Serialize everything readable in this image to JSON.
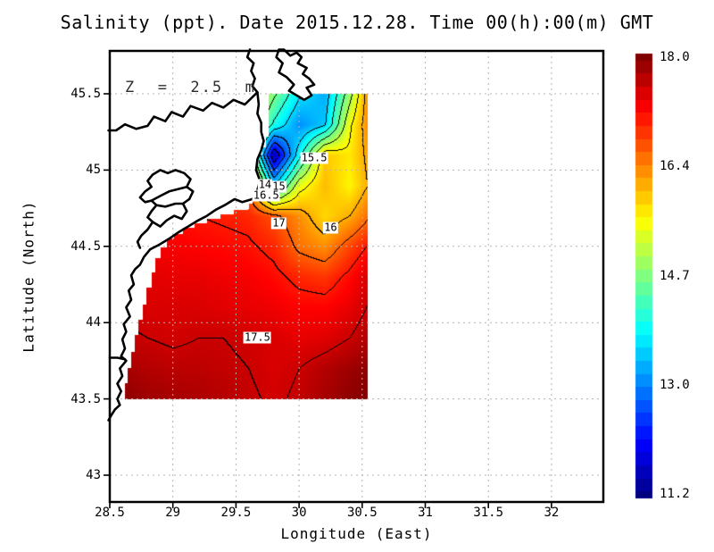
{
  "title": "Salinity (ppt). Date 2015.12.28. Time 00(h):00(m) GMT",
  "annotation": {
    "depth_label": "Z  =  2.5  m"
  },
  "axes": {
    "x": {
      "label": "Longitude (East)",
      "tick_labels": [
        "28.5",
        "29",
        "29.5",
        "30",
        "30.5",
        "31",
        "31.5",
        "32"
      ],
      "tick_values": [
        28.5,
        29,
        29.5,
        30,
        30.5,
        31,
        31.5,
        32
      ],
      "range": [
        28.5,
        32.41
      ]
    },
    "y": {
      "label": "Latitude (North)",
      "tick_labels": [
        "45.5",
        "45",
        "44.5",
        "44",
        "43.5",
        "43"
      ],
      "tick_values": [
        45.5,
        45,
        44.5,
        44,
        43.5,
        43
      ],
      "range": [
        42.82,
        45.78
      ]
    }
  },
  "colorbar": {
    "tick_labels": [
      "18.0",
      "16.4",
      "14.7",
      "13.0",
      "11.2"
    ],
    "min": 11.2,
    "max": 18.0,
    "colormap": "jet"
  },
  "colors": {
    "contour": "#000000",
    "coast": "#000000",
    "grid": "#b4b4b4",
    "frame": "#000000",
    "land": "#ffffff",
    "label_bg": "#ffffff",
    "annotation": "#2e2e2e"
  },
  "chart_data": {
    "type": "heatmap",
    "variable": "Salinity",
    "units": "ppt",
    "depth": "2.5 m",
    "date": "2015.12.28",
    "time": "00(h):00(m) GMT",
    "title": "Salinity (ppt). Date 2015.12.28. Time 00(h):00(m) GMT",
    "xlabel": "Longitude (East)",
    "ylabel": "Latitude (North)",
    "grid": true,
    "legend_position": "right-colorbar",
    "value_range": [
      11.2,
      18.0
    ],
    "contour_interval": 0.5,
    "lon": [
      28.6,
      28.8,
      29.0,
      29.2,
      29.4,
      29.6,
      29.8,
      30.0,
      30.2,
      30.4,
      30.6
    ],
    "lat": [
      45.5,
      45.3,
      45.1,
      44.9,
      44.7,
      44.5,
      44.3,
      44.1,
      43.9,
      43.7,
      43.5
    ],
    "values": [
      [
        17.0,
        17.0,
        17.0,
        16.9,
        16.6,
        15.6,
        14.6,
        13.6,
        13.2,
        14.8,
        16.8
      ],
      [
        17.0,
        17.0,
        17.0,
        16.9,
        16.6,
        15.4,
        13.9,
        13.0,
        13.4,
        15.4,
        16.6
      ],
      [
        17.1,
        17.1,
        17.1,
        17.0,
        16.7,
        15.2,
        11.5,
        13.8,
        15.8,
        15.6,
        16.3
      ],
      [
        17.2,
        17.2,
        17.2,
        17.1,
        16.8,
        16.5,
        13.5,
        15.3,
        15.9,
        15.5,
        16.2
      ],
      [
        17.1,
        17.1,
        17.05,
        17.0,
        16.95,
        16.9,
        16.6,
        16.2,
        15.7,
        16.0,
        16.6
      ],
      [
        17.3,
        17.25,
        17.2,
        17.15,
        17.1,
        17.05,
        16.9,
        16.4,
        16.2,
        16.7,
        17.15
      ],
      [
        17.4,
        17.35,
        17.3,
        17.3,
        17.25,
        17.2,
        17.1,
        16.9,
        16.8,
        17.1,
        17.55
      ],
      [
        17.45,
        17.4,
        17.4,
        17.4,
        17.35,
        17.3,
        17.25,
        17.15,
        17.15,
        17.3,
        17.6
      ],
      [
        17.55,
        17.5,
        17.45,
        17.5,
        17.5,
        17.45,
        17.4,
        17.3,
        17.35,
        17.5,
        17.75
      ],
      [
        17.75,
        17.65,
        17.6,
        17.6,
        17.55,
        17.5,
        17.4,
        17.5,
        17.65,
        17.8,
        17.95
      ],
      [
        17.9,
        17.8,
        17.75,
        17.7,
        17.65,
        17.55,
        17.45,
        17.55,
        17.75,
        17.9,
        18.0
      ]
    ],
    "contour_labels": [
      {
        "text": "15.5",
        "lon": 30.12,
        "lat": 45.08
      },
      {
        "text": "14",
        "lon": 29.73,
        "lat": 44.9
      },
      {
        "text": "15",
        "lon": 29.84,
        "lat": 44.89
      },
      {
        "text": "16.5",
        "lon": 29.74,
        "lat": 44.83
      },
      {
        "text": "17",
        "lon": 29.84,
        "lat": 44.65
      },
      {
        "text": "16",
        "lon": 30.25,
        "lat": 44.62
      },
      {
        "text": "17.5",
        "lon": 29.67,
        "lat": 43.9
      }
    ],
    "domain_boundary": [
      [
        28.62,
        43.5
      ],
      [
        28.62,
        43.6
      ],
      [
        28.64,
        43.6
      ],
      [
        28.64,
        43.7
      ],
      [
        28.67,
        43.7
      ],
      [
        28.67,
        43.81
      ],
      [
        28.7,
        43.81
      ],
      [
        28.7,
        43.92
      ],
      [
        28.73,
        43.92
      ],
      [
        28.73,
        44.02
      ],
      [
        28.76,
        44.02
      ],
      [
        28.76,
        44.12
      ],
      [
        28.79,
        44.12
      ],
      [
        28.79,
        44.23
      ],
      [
        28.83,
        44.23
      ],
      [
        28.83,
        44.33
      ],
      [
        28.86,
        44.33
      ],
      [
        28.86,
        44.42
      ],
      [
        28.9,
        44.42
      ],
      [
        28.9,
        44.49
      ],
      [
        28.95,
        44.49
      ],
      [
        28.95,
        44.55
      ],
      [
        29.01,
        44.55
      ],
      [
        29.01,
        44.58
      ],
      [
        29.08,
        44.58
      ],
      [
        29.08,
        44.62
      ],
      [
        29.17,
        44.62
      ],
      [
        29.17,
        44.65
      ],
      [
        29.27,
        44.65
      ],
      [
        29.27,
        44.68
      ],
      [
        29.38,
        44.68
      ],
      [
        29.38,
        44.71
      ],
      [
        29.48,
        44.71
      ],
      [
        29.48,
        44.74
      ],
      [
        29.6,
        44.74
      ],
      [
        29.6,
        44.78
      ],
      [
        29.63,
        44.78
      ],
      [
        29.63,
        44.83
      ],
      [
        29.67,
        44.83
      ],
      [
        29.67,
        44.87
      ],
      [
        29.7,
        44.87
      ],
      [
        29.7,
        44.93
      ],
      [
        29.68,
        44.93
      ],
      [
        29.68,
        44.97
      ],
      [
        29.67,
        44.97
      ],
      [
        29.67,
        45.04
      ],
      [
        29.68,
        45.04
      ],
      [
        29.68,
        45.1
      ],
      [
        29.71,
        45.1
      ],
      [
        29.71,
        45.15
      ],
      [
        29.74,
        45.15
      ],
      [
        29.74,
        45.22
      ],
      [
        29.76,
        45.22
      ],
      [
        29.76,
        45.5
      ],
      [
        30.545,
        45.5
      ],
      [
        30.545,
        43.5
      ]
    ],
    "coastlines": [
      {
        "name": "chilia-arm-and-north-shore",
        "closed": false,
        "fill": false,
        "points": [
          [
            29.61,
            45.79
          ],
          [
            29.59,
            45.74
          ],
          [
            29.64,
            45.7
          ],
          [
            29.62,
            45.65
          ],
          [
            29.65,
            45.6
          ],
          [
            29.63,
            45.55
          ],
          [
            29.67,
            45.51
          ],
          [
            29.57,
            45.43
          ],
          [
            29.48,
            45.46
          ],
          [
            29.4,
            45.41
          ],
          [
            29.31,
            45.44
          ],
          [
            29.24,
            45.39
          ],
          [
            29.14,
            45.42
          ],
          [
            29.08,
            45.35
          ],
          [
            28.99,
            45.38
          ],
          [
            28.94,
            45.32
          ],
          [
            28.85,
            45.35
          ],
          [
            28.8,
            45.29
          ],
          [
            28.71,
            45.27
          ],
          [
            28.62,
            45.3
          ],
          [
            28.55,
            45.26
          ],
          [
            28.49,
            45.26
          ]
        ]
      },
      {
        "name": "delta-and-south-coast",
        "closed": false,
        "fill": false,
        "points": [
          [
            29.67,
            45.51
          ],
          [
            29.68,
            45.43
          ],
          [
            29.67,
            45.37
          ],
          [
            29.7,
            45.31
          ],
          [
            29.7,
            45.25
          ],
          [
            29.72,
            45.19
          ],
          [
            29.7,
            45.13
          ],
          [
            29.67,
            45.07
          ],
          [
            29.66,
            45.0
          ],
          [
            29.69,
            44.93
          ],
          [
            29.67,
            44.87
          ],
          [
            29.63,
            44.81
          ],
          [
            29.55,
            44.79
          ],
          [
            29.49,
            44.81
          ],
          [
            29.41,
            44.77
          ],
          [
            29.34,
            44.74
          ],
          [
            29.27,
            44.7
          ],
          [
            29.2,
            44.67
          ],
          [
            29.12,
            44.63
          ],
          [
            29.04,
            44.59
          ],
          [
            28.97,
            44.55
          ],
          [
            28.89,
            44.51
          ],
          [
            28.82,
            44.48
          ],
          [
            28.77,
            44.43
          ],
          [
            28.74,
            44.38
          ],
          [
            28.7,
            44.35
          ],
          [
            28.67,
            44.31
          ],
          [
            28.69,
            44.25
          ],
          [
            28.65,
            44.21
          ],
          [
            28.67,
            44.15
          ],
          [
            28.63,
            44.1
          ],
          [
            28.66,
            44.04
          ],
          [
            28.61,
            43.99
          ],
          [
            28.63,
            43.94
          ],
          [
            28.6,
            43.89
          ],
          [
            28.62,
            43.83
          ],
          [
            28.59,
            43.78
          ],
          [
            28.63,
            43.75
          ],
          [
            28.58,
            43.7
          ],
          [
            28.6,
            43.65
          ],
          [
            28.56,
            43.6
          ],
          [
            28.59,
            43.55
          ],
          [
            28.56,
            43.5
          ],
          [
            28.58,
            43.46
          ],
          [
            28.54,
            43.43
          ],
          [
            28.51,
            43.39
          ],
          [
            28.49,
            43.36
          ]
        ]
      },
      {
        "name": "chilia-delta-lobe",
        "closed": true,
        "fill": true,
        "points": [
          [
            29.84,
            45.79
          ],
          [
            29.82,
            45.74
          ],
          [
            29.87,
            45.7
          ],
          [
            29.84,
            45.64
          ],
          [
            29.9,
            45.61
          ],
          [
            29.96,
            45.56
          ],
          [
            29.92,
            45.52
          ],
          [
            29.98,
            45.49
          ],
          [
            30.04,
            45.46
          ],
          [
            30.1,
            45.49
          ],
          [
            30.06,
            45.54
          ],
          [
            30.12,
            45.56
          ],
          [
            30.08,
            45.6
          ],
          [
            30.03,
            45.63
          ],
          [
            30.06,
            45.67
          ],
          [
            29.99,
            45.7
          ],
          [
            30.02,
            45.74
          ],
          [
            29.98,
            45.77
          ],
          [
            29.93,
            45.75
          ],
          [
            29.88,
            45.79
          ]
        ]
      },
      {
        "name": "razelm-lagoon",
        "closed": true,
        "fill": true,
        "points": [
          [
            29.02,
            45.0
          ],
          [
            29.09,
            44.98
          ],
          [
            29.14,
            44.94
          ],
          [
            29.11,
            44.89
          ],
          [
            29.16,
            44.86
          ],
          [
            29.13,
            44.81
          ],
          [
            29.08,
            44.78
          ],
          [
            29.11,
            44.73
          ],
          [
            29.07,
            44.68
          ],
          [
            29.01,
            44.7
          ],
          [
            28.95,
            44.67
          ],
          [
            28.9,
            44.63
          ],
          [
            28.84,
            44.66
          ],
          [
            28.8,
            44.69
          ],
          [
            28.83,
            44.73
          ],
          [
            28.87,
            44.77
          ],
          [
            28.83,
            44.8
          ],
          [
            28.78,
            44.79
          ],
          [
            28.74,
            44.82
          ],
          [
            28.78,
            44.86
          ],
          [
            28.83,
            44.89
          ],
          [
            28.8,
            44.93
          ],
          [
            28.84,
            44.97
          ],
          [
            28.9,
            45.0
          ],
          [
            28.96,
            44.98
          ]
        ]
      },
      {
        "name": "lagoon-divider-south",
        "closed": false,
        "fill": false,
        "points": [
          [
            28.87,
            44.77
          ],
          [
            28.94,
            44.76
          ],
          [
            29.02,
            44.78
          ],
          [
            29.08,
            44.78
          ]
        ]
      },
      {
        "name": "lagoon-divider-north",
        "closed": false,
        "fill": false,
        "points": [
          [
            28.83,
            44.8
          ],
          [
            28.9,
            44.83
          ],
          [
            28.97,
            44.86
          ],
          [
            29.11,
            44.89
          ]
        ]
      },
      {
        "name": "lagoon-spit",
        "closed": false,
        "fill": false,
        "points": [
          [
            28.84,
            44.66
          ],
          [
            28.8,
            44.61
          ],
          [
            28.75,
            44.57
          ],
          [
            28.72,
            44.53
          ],
          [
            28.74,
            44.49
          ]
        ]
      },
      {
        "name": "coastal-inlet",
        "closed": false,
        "fill": false,
        "points": [
          [
            28.62,
            43.76
          ],
          [
            28.56,
            43.77
          ],
          [
            28.5,
            43.77
          ]
        ]
      }
    ]
  }
}
